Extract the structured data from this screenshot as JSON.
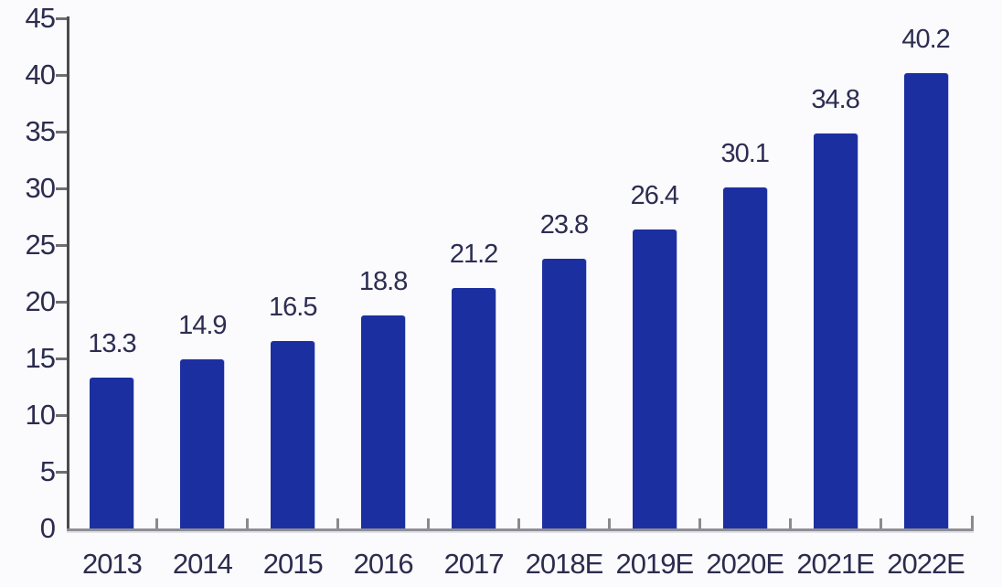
{
  "chart_data": {
    "type": "bar",
    "categories": [
      "2013",
      "2014",
      "2015",
      "2016",
      "2017",
      "2018E",
      "2019E",
      "2020E",
      "2021E",
      "2022E"
    ],
    "values": [
      13.3,
      14.9,
      16.5,
      18.8,
      21.2,
      23.8,
      26.4,
      30.1,
      34.8,
      40.2
    ],
    "value_labels": [
      "13.3",
      "14.9",
      "16.5",
      "18.8",
      "21.2",
      "23.8",
      "26.4",
      "30.1",
      "34.8",
      "40.2"
    ],
    "title": "",
    "xlabel": "",
    "ylabel": "",
    "ylim": [
      0,
      45
    ],
    "y_ticks": [
      0,
      5,
      10,
      15,
      20,
      25,
      30,
      35,
      40,
      45
    ],
    "grid": false,
    "legend": false,
    "bar_color": "#1c2fa0",
    "value_label_color": "#2d2d52",
    "axis_label_color": "#2c2c4e",
    "background_color": "#fbfafd"
  }
}
